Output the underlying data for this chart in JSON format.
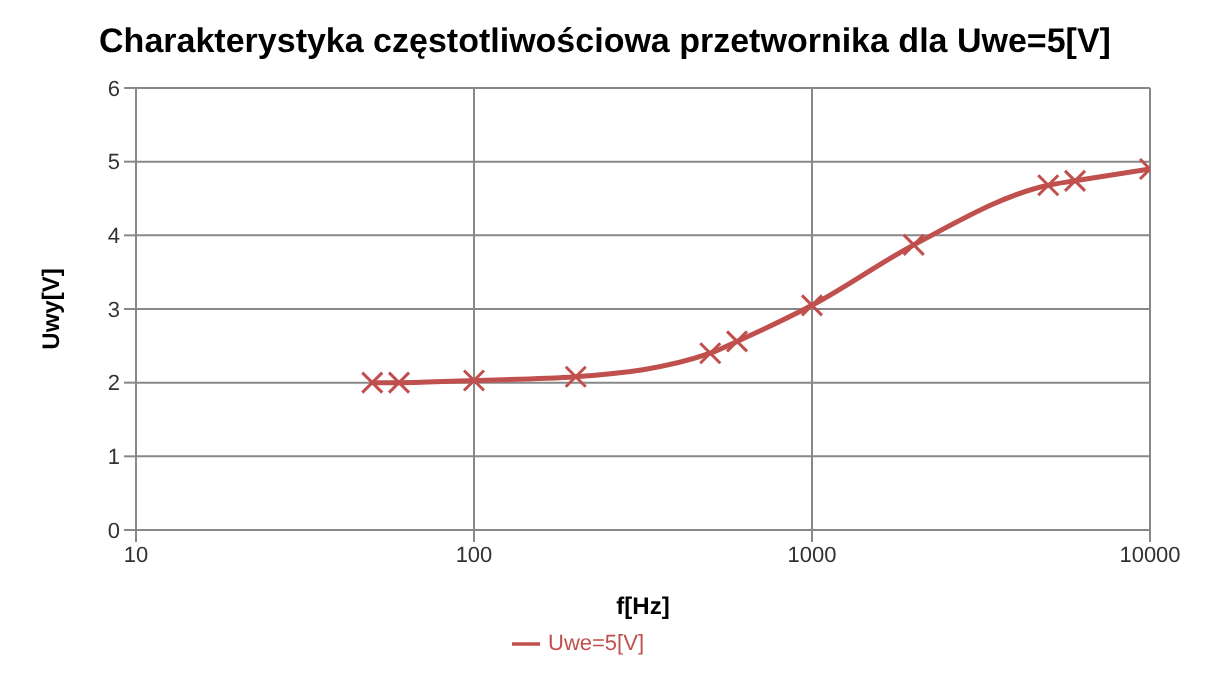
{
  "chart_data": {
    "type": "line",
    "title": "Charakterystyka częstotliwościowa przetwornika dla Uwe=5[V]",
    "xlabel": "f[Hz]",
    "ylabel": "Uwy[V]",
    "x": [
      50,
      60,
      100,
      200,
      500,
      600,
      1000,
      2000,
      5000,
      6000,
      10000
    ],
    "series": [
      {
        "name": "Uwe=5[V]",
        "color": "#c0504d",
        "values": [
          2.0,
          2.0,
          2.03,
          2.08,
          2.4,
          2.56,
          3.05,
          3.87,
          4.68,
          4.74,
          4.9
        ]
      }
    ],
    "log": "x",
    "xlim": [
      10,
      10000
    ],
    "xticks": [
      10,
      100,
      1000,
      10000
    ],
    "ylim": [
      0,
      6
    ],
    "yticks": [
      0,
      1,
      2,
      3,
      4,
      5,
      6
    ],
    "grid": true,
    "legend": "bottom",
    "marker": "cross",
    "line_style": "solid"
  }
}
